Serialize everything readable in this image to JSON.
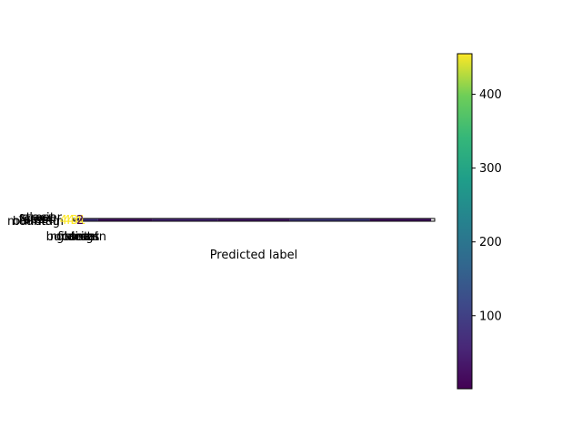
{
  "chart_data": {
    "type": "heatmap",
    "title": "",
    "xlabel": "Predicted label",
    "ylabel": "",
    "note": "Confusion-matrix image rendered as a very thin horizontal strip; cell annotations and tick labels are crowded and overlap near the left end.",
    "visible_overlapping_text_left": [
      "building",
      "forest",
      "glacier",
      "mountain",
      "sea",
      "street"
    ],
    "visible_overlapping_text_bottom": [
      "buildings",
      "forest",
      "glacier",
      "mountain",
      "sea",
      "street"
    ],
    "visible_overlapping_annotations": [
      "444",
      "431",
      "2"
    ],
    "strip_intensity_samples": [
      {
        "x_frac": 0.07,
        "value": 80
      },
      {
        "x_frac": 0.22,
        "value": 30
      },
      {
        "x_frac": 0.4,
        "value": 60
      },
      {
        "x_frac": 0.6,
        "value": 40
      },
      {
        "x_frac": 0.82,
        "value": 90
      },
      {
        "x_frac": 0.99,
        "value": 30
      }
    ],
    "colorbar": {
      "colormap": "viridis",
      "vmin": 1,
      "vmax": 455,
      "ticks": [
        100,
        200,
        300,
        400
      ],
      "tick_labels": [
        "100",
        "200",
        "300",
        "400"
      ]
    }
  },
  "colors": {
    "background": "#ffffff",
    "axis": "#000000",
    "viridis_low": "#440154",
    "viridis_high": "#fde725"
  }
}
